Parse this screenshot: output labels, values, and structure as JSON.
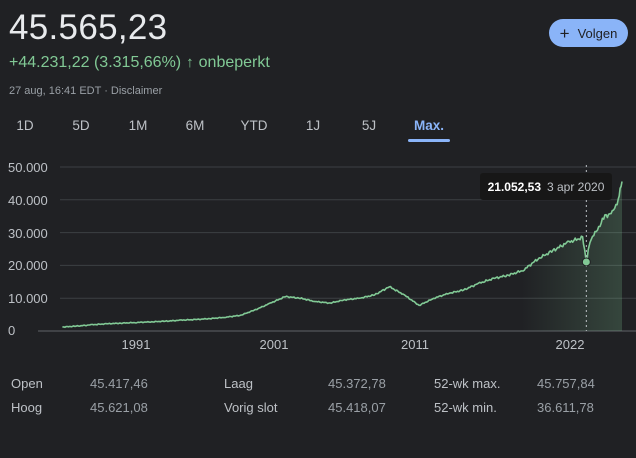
{
  "header": {
    "price": "45.565,23",
    "change": "+44.231,22 (3.315,66%)",
    "change_arrow": "↑",
    "period": "onbeperkt",
    "timestamp": "27 aug, 16:41 EDT · Disclaimer",
    "follow_label": "Volgen",
    "follow_icon": "plus-icon"
  },
  "tabs": [
    {
      "label": "1D"
    },
    {
      "label": "5D"
    },
    {
      "label": "1M"
    },
    {
      "label": "6M"
    },
    {
      "label": "YTD"
    },
    {
      "label": "1J"
    },
    {
      "label": "5J"
    },
    {
      "label": "Max.",
      "active": true
    }
  ],
  "colors": {
    "background": "#202124",
    "line": "#81c995",
    "accent": "#8ab4f8",
    "text": "#e8eaed",
    "muted": "#9aa0a6"
  },
  "chart_data": {
    "type": "line",
    "x_tick_labels": [
      "1991",
      "2001",
      "2011",
      "2022"
    ],
    "y_tick_labels": [
      "50.000",
      "40.000",
      "30.000",
      "20.000",
      "10.000",
      "0"
    ],
    "ylim": [
      0,
      50000
    ],
    "xlim": [
      1984.5,
      2022.65
    ],
    "series": [
      {
        "x": [
          1985.0,
          1986.0,
          1987.0,
          1988.0,
          1989.0,
          1990.0,
          1991.0,
          1992.0,
          1993.0,
          1994.0,
          1995.0,
          1996.0,
          1997.0,
          1998.0,
          1999.0,
          2000.0,
          2001.0,
          2002.0,
          2003.0,
          2004.0,
          2005.0,
          2006.0,
          2007.0,
          2008.0,
          2009.0,
          2010.0,
          2011.0,
          2012.0,
          2013.0,
          2014.0,
          2015.0,
          2016.0,
          2017.0,
          2018.0,
          2019.0,
          2020.0,
          2020.25,
          2020.5,
          2021.0,
          2021.5,
          2022.0,
          2022.4,
          2022.65
        ],
        "y": [
          1200,
          1500,
          1900,
          2200,
          2400,
          2600,
          2800,
          3000,
          3300,
          3500,
          3800,
          4200,
          4800,
          6500,
          8500,
          10500,
          10000,
          9000,
          8500,
          9500,
          10000,
          11000,
          13500,
          11000,
          7800,
          10000,
          11500,
          12500,
          14500,
          16000,
          17000,
          18500,
          22000,
          24500,
          27000,
          28500,
          21052,
          27500,
          31000,
          35000,
          36000,
          40000,
          45565
        ]
      }
    ],
    "tooltip": {
      "value": "21.052,53",
      "date": "3 apr 2020",
      "x": 2020.25,
      "y": 21052
    }
  },
  "stats": [
    {
      "label": "Open",
      "value": "45.417,46"
    },
    {
      "label": "Hoog",
      "value": "45.621,08"
    },
    {
      "label": "Laag",
      "value": "45.372,78"
    },
    {
      "label": "Vorig slot",
      "value": "45.418,07"
    },
    {
      "label": "52-wk max.",
      "value": "45.757,84"
    },
    {
      "label": "52-wk min.",
      "value": "36.611,78"
    }
  ]
}
